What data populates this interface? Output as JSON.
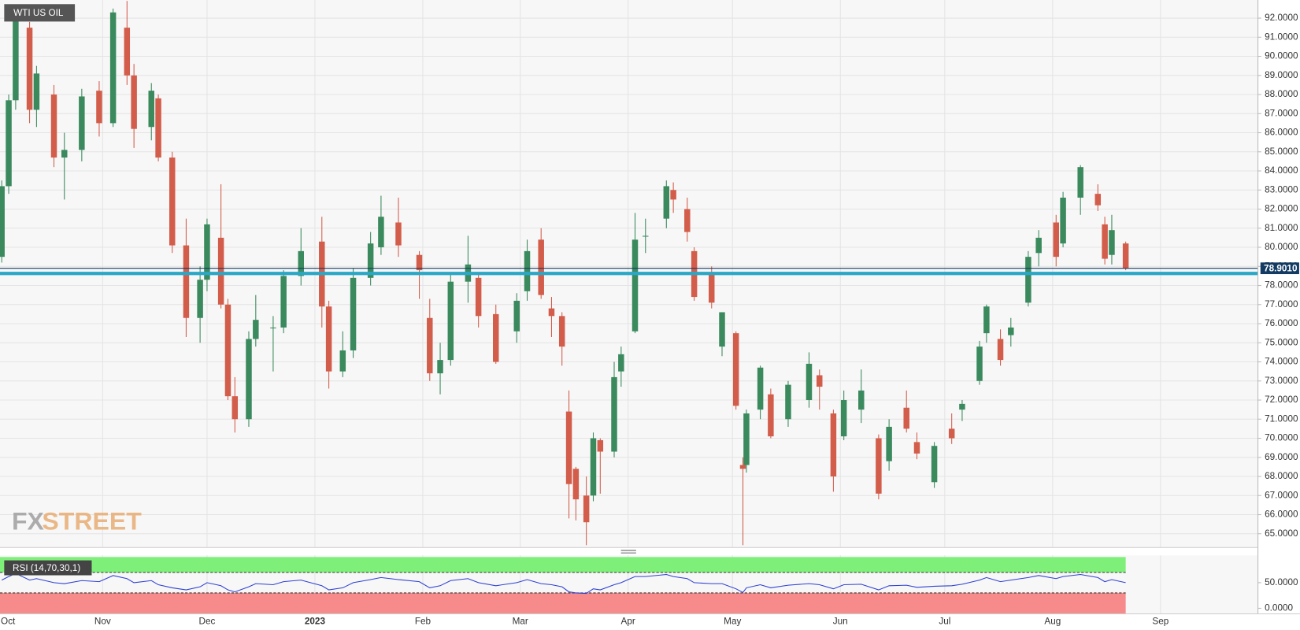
{
  "chart_data": {
    "type": "candlestick",
    "title": "WTI US OIL",
    "watermark_fx": "FX",
    "watermark_street": "STREET",
    "x": [
      2,
      4,
      6,
      10,
      12,
      17,
      20,
      25,
      30,
      34,
      38,
      40,
      45,
      47,
      51,
      55,
      59,
      61,
      65,
      67,
      69,
      73,
      75,
      80,
      83,
      88,
      94,
      96,
      100,
      103,
      108,
      111,
      116,
      122,
      125,
      128,
      131,
      136,
      139,
      144,
      150,
      153,
      157,
      160,
      163,
      165,
      167,
      170,
      172,
      174,
      178,
      180,
      184,
      187,
      193,
      195,
      199,
      201,
      206,
      209,
      213,
      215,
      216,
      220,
      223,
      228,
      234,
      237,
      241,
      244,
      249,
      254,
      257,
      262,
      265,
      270,
      275,
      278,
      283,
      285,
      289,
      292,
      297,
      300,
      305,
      307,
      312,
      317,
      319,
      321,
      325
    ],
    "open": [
      79.5,
      83.2,
      87.7,
      91.5,
      87.2,
      88,
      84.7,
      85.1,
      88.2,
      86.5,
      91.5,
      89,
      86.3,
      87.8,
      84.7,
      80.1,
      76.3,
      78.3,
      80.5,
      77,
      72.2,
      71,
      75.2,
      75.8,
      75.8,
      78.5,
      80.3,
      76.9,
      73.5,
      74.6,
      78.4,
      80,
      81.3,
      79.6,
      76.3,
      73.4,
      74.1,
      78.2,
      78.4,
      76.5,
      75.6,
      77.7,
      80.4,
      76.8,
      76.4,
      71.4,
      68.4,
      67,
      67,
      69.9,
      69.3,
      73.5,
      75.6,
      80.6,
      81.5,
      83,
      82,
      79.8,
      78.7,
      74.8,
      75.5,
      68.6,
      68.6,
      71.5,
      72.3,
      71,
      72,
      73.3,
      71.3,
      70.1,
      71.5,
      70,
      68.8,
      71.6,
      69.8,
      67.7,
      70.5,
      71.5,
      73,
      75.5,
      75.2,
      75.4,
      77.1,
      79.7,
      81.3,
      80.2,
      82.6,
      82.8,
      81.2,
      79.6,
      80.2
    ],
    "high": [
      83.5,
      88,
      92.6,
      91.8,
      89.5,
      88.5,
      86,
      88.3,
      88.7,
      92.5,
      92.9,
      89.6,
      88.6,
      88,
      85,
      81.5,
      79,
      81.5,
      83.3,
      77.3,
      73.2,
      75.6,
      77.5,
      76.4,
      78.8,
      81,
      81.6,
      77.2,
      75.6,
      78.9,
      80.8,
      82.7,
      82.6,
      79.8,
      77.3,
      75,
      78.7,
      80.6,
      78.7,
      77,
      77.6,
      80.4,
      81,
      77.4,
      76.6,
      72.5,
      68.5,
      68,
      70.3,
      70,
      74,
      74.8,
      81.8,
      81.5,
      83.5,
      83.4,
      82.6,
      80,
      79,
      76.6,
      75.6,
      69,
      71.5,
      73.8,
      72.6,
      73,
      74.5,
      73.6,
      71.5,
      72.5,
      73.6,
      70.2,
      71,
      72.5,
      70.3,
      69.8,
      71.3,
      72,
      75.1,
      77,
      75.7,
      76.3,
      79.8,
      80.9,
      81.7,
      82.9,
      84.3,
      83.3,
      81.6,
      81.7,
      80.3
    ],
    "low": [
      79.2,
      82.8,
      87.2,
      86.5,
      86.3,
      84.2,
      82.5,
      84.5,
      85.8,
      86.3,
      88.5,
      85.2,
      85.6,
      84.5,
      79.7,
      75.3,
      75,
      77.7,
      76.8,
      72,
      70.3,
      70.6,
      74.8,
      73.5,
      75.5,
      78,
      75.8,
      72.6,
      73.2,
      74.2,
      78,
      79.6,
      79.5,
      77.3,
      73,
      72.3,
      73.8,
      77.1,
      75.8,
      73.9,
      75,
      77.2,
      77.3,
      75.3,
      73.8,
      65.8,
      65.7,
      64.4,
      66.7,
      67.1,
      69,
      72.7,
      75.5,
      79.7,
      81,
      81.8,
      80.3,
      77.2,
      76.8,
      74.3,
      71.5,
      64.4,
      68.2,
      71,
      70,
      70.6,
      71.6,
      71.5,
      67.2,
      69.9,
      70.8,
      66.8,
      68.3,
      70.3,
      68.9,
      67.4,
      69.7,
      70.9,
      72.8,
      75,
      73.8,
      74.8,
      76.9,
      79,
      79,
      80,
      81.7,
      81.9,
      79.1,
      79.1,
      78.8
    ],
    "close": [
      83.2,
      87.7,
      92.5,
      87.2,
      89.1,
      84.7,
      85.1,
      87.9,
      86.5,
      92.3,
      89,
      86.2,
      88.2,
      84.7,
      80.1,
      76.3,
      78.3,
      81.2,
      77,
      72.2,
      71,
      75.2,
      76.2,
      75.8,
      78.5,
      79.8,
      76.9,
      73.5,
      74.6,
      78.4,
      80.2,
      81.6,
      80.1,
      78.8,
      73.4,
      74.1,
      78.2,
      79.1,
      76.4,
      74,
      77.2,
      79.8,
      77.5,
      76.4,
      74.8,
      67.6,
      66.8,
      65.6,
      70,
      69.3,
      73.2,
      74.4,
      80.4,
      80.6,
      83.2,
      82.5,
      80.8,
      77.4,
      77.1,
      76.6,
      71.7,
      68.4,
      71.3,
      73.7,
      70.1,
      72.8,
      73.9,
      72.7,
      68,
      72,
      72.5,
      67.1,
      70.6,
      70.5,
      69.2,
      69.6,
      70,
      71.8,
      74.8,
      76.9,
      74.1,
      75.8,
      79.5,
      80.5,
      79.5,
      82.6,
      84.2,
      82.2,
      79.4,
      80.9,
      78.9
    ],
    "up_color": "#3a8a5e",
    "down_color": "#d35d4b",
    "xlim": [
      1.5,
      363
    ],
    "xticks": [
      {
        "value": 0,
        "label": "Oct"
      },
      {
        "value": 31,
        "label": "Nov"
      },
      {
        "value": 61,
        "label": "Dec"
      },
      {
        "value": 92,
        "label": "2023"
      },
      {
        "value": 123,
        "label": "Feb"
      },
      {
        "value": 151,
        "label": "Mar"
      },
      {
        "value": 182,
        "label": "Apr"
      },
      {
        "value": 212,
        "label": "May"
      },
      {
        "value": 243,
        "label": "Jun"
      },
      {
        "value": 273,
        "label": "Jul"
      },
      {
        "value": 304,
        "label": "Aug"
      },
      {
        "value": 335,
        "label": "Sep"
      }
    ],
    "ylim": [
      64.3,
      92.95
    ],
    "yticks": [
      {
        "value": 65,
        "label": "65.0000"
      },
      {
        "value": 66,
        "label": "66.0000"
      },
      {
        "value": 67,
        "label": "67.0000"
      },
      {
        "value": 68,
        "label": "68.0000"
      },
      {
        "value": 69,
        "label": "69.0000"
      },
      {
        "value": 70,
        "label": "70.0000"
      },
      {
        "value": 71,
        "label": "71.0000"
      },
      {
        "value": 72,
        "label": "72.0000"
      },
      {
        "value": 73,
        "label": "73.0000"
      },
      {
        "value": 74,
        "label": "74.0000"
      },
      {
        "value": 75,
        "label": "75.0000"
      },
      {
        "value": 76,
        "label": "76.0000"
      },
      {
        "value": 77,
        "label": "77.0000"
      },
      {
        "value": 78,
        "label": "78.0000"
      },
      {
        "value": 79,
        "label": "79.0000"
      },
      {
        "value": 80,
        "label": "80.0000"
      },
      {
        "value": 81,
        "label": "81.0000"
      },
      {
        "value": 82,
        "label": "82.0000"
      },
      {
        "value": 83,
        "label": "83.0000"
      },
      {
        "value": 84,
        "label": "84.0000"
      },
      {
        "value": 85,
        "label": "85.0000"
      },
      {
        "value": 86,
        "label": "86.0000"
      },
      {
        "value": 87,
        "label": "87.0000"
      },
      {
        "value": 88,
        "label": "88.0000"
      },
      {
        "value": 89,
        "label": "89.0000"
      },
      {
        "value": 90,
        "label": "90.0000"
      },
      {
        "value": 91,
        "label": "91.0000"
      },
      {
        "value": 92,
        "label": "92.0000"
      }
    ],
    "grid": true,
    "last_price": {
      "value": 78.901,
      "label": "78.9010"
    },
    "last_price_color": "#123a63",
    "support_level": 78.63,
    "support_color": "#2aa7c6",
    "rsi": {
      "label": "RSI (14,70,30,1)",
      "color": "#2d40d4",
      "overbought": 70,
      "oversold": 30,
      "ylim": [
        -10,
        100
      ],
      "yticks": [
        {
          "value": 50,
          "label": "50.0000"
        },
        {
          "value": 0,
          "label": "0.0000"
        }
      ],
      "values": [
        55,
        62,
        68,
        55,
        58,
        50,
        48,
        54,
        52,
        64,
        58,
        50,
        54,
        46,
        40,
        36,
        42,
        50,
        44,
        36,
        32,
        42,
        48,
        46,
        52,
        55,
        44,
        36,
        40,
        50,
        56,
        60,
        56,
        52,
        40,
        44,
        54,
        58,
        50,
        44,
        50,
        56,
        48,
        46,
        42,
        32,
        30,
        29,
        38,
        36,
        46,
        50,
        62,
        62,
        66,
        62,
        58,
        50,
        48,
        48,
        38,
        31,
        40,
        46,
        40,
        45,
        48,
        46,
        38,
        46,
        47,
        36,
        44,
        45,
        41,
        43,
        44,
        47,
        55,
        60,
        52,
        55,
        60,
        64,
        58,
        62,
        66,
        60,
        52,
        56,
        50
      ]
    }
  }
}
